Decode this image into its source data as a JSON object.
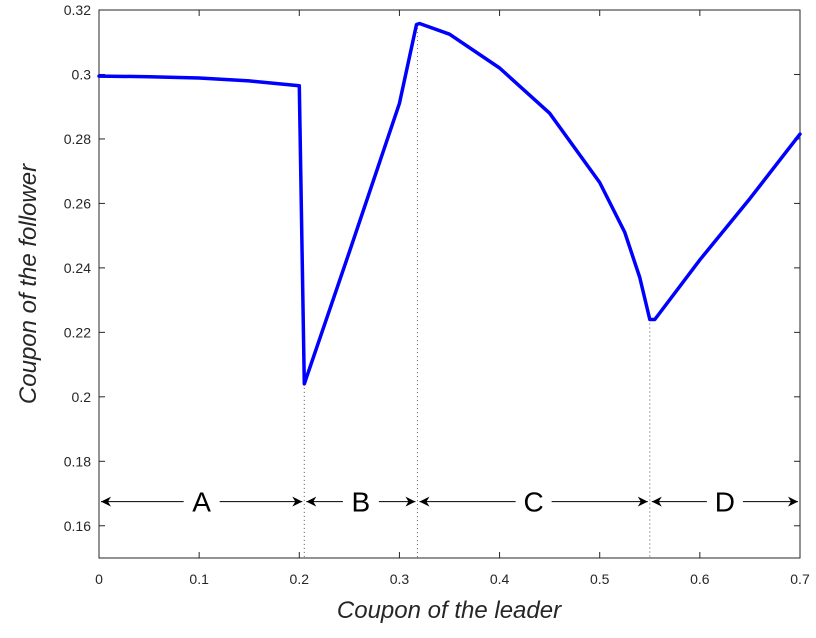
{
  "chart_data": {
    "type": "line",
    "xlabel": "Coupon of the leader",
    "ylabel": "Coupon of the follower",
    "xlim": [
      0,
      0.7
    ],
    "ylim": [
      0.15,
      0.32
    ],
    "x_ticks": [
      0,
      0.1,
      0.2,
      0.3,
      0.4,
      0.5,
      0.6,
      0.7
    ],
    "x_tick_labels": [
      "0",
      "0.1",
      "0.2",
      "0.3",
      "0.4",
      "0.5",
      "0.6",
      "0.7"
    ],
    "y_ticks": [
      0.16,
      0.18,
      0.2,
      0.22,
      0.24,
      0.26,
      0.28,
      0.3,
      0.32
    ],
    "y_tick_labels": [
      "0.16",
      "0.18",
      "0.2",
      "0.22",
      "0.24",
      "0.26",
      "0.28",
      "0.3",
      "0.32"
    ],
    "grid": false,
    "series": [
      {
        "color": "#0000ff",
        "x": [
          0,
          0.05,
          0.1,
          0.15,
          0.2,
          0.205,
          0.25,
          0.3,
          0.317,
          0.32,
          0.35,
          0.4,
          0.45,
          0.5,
          0.525,
          0.54,
          0.55,
          0.555,
          0.6,
          0.65,
          0.7
        ],
        "y": [
          0.2995,
          0.2993,
          0.2989,
          0.298,
          0.2965,
          0.204,
          0.245,
          0.291,
          0.3155,
          0.3158,
          0.3125,
          0.302,
          0.288,
          0.2665,
          0.251,
          0.237,
          0.224,
          0.224,
          0.2425,
          0.2615,
          0.2815
        ]
      }
    ],
    "boundaries": [
      0.205,
      0.318,
      0.55
    ],
    "region_arrow_y": 0.1675,
    "regions": [
      {
        "label": "A",
        "x": [
          0,
          0.205
        ]
      },
      {
        "label": "B",
        "x": [
          0.205,
          0.318
        ]
      },
      {
        "label": "C",
        "x": [
          0.318,
          0.55
        ]
      },
      {
        "label": "D",
        "x": [
          0.55,
          0.7
        ]
      }
    ],
    "colors": {
      "curve": "#0000ff",
      "axes": "#262626",
      "annotation": "#000000"
    }
  }
}
